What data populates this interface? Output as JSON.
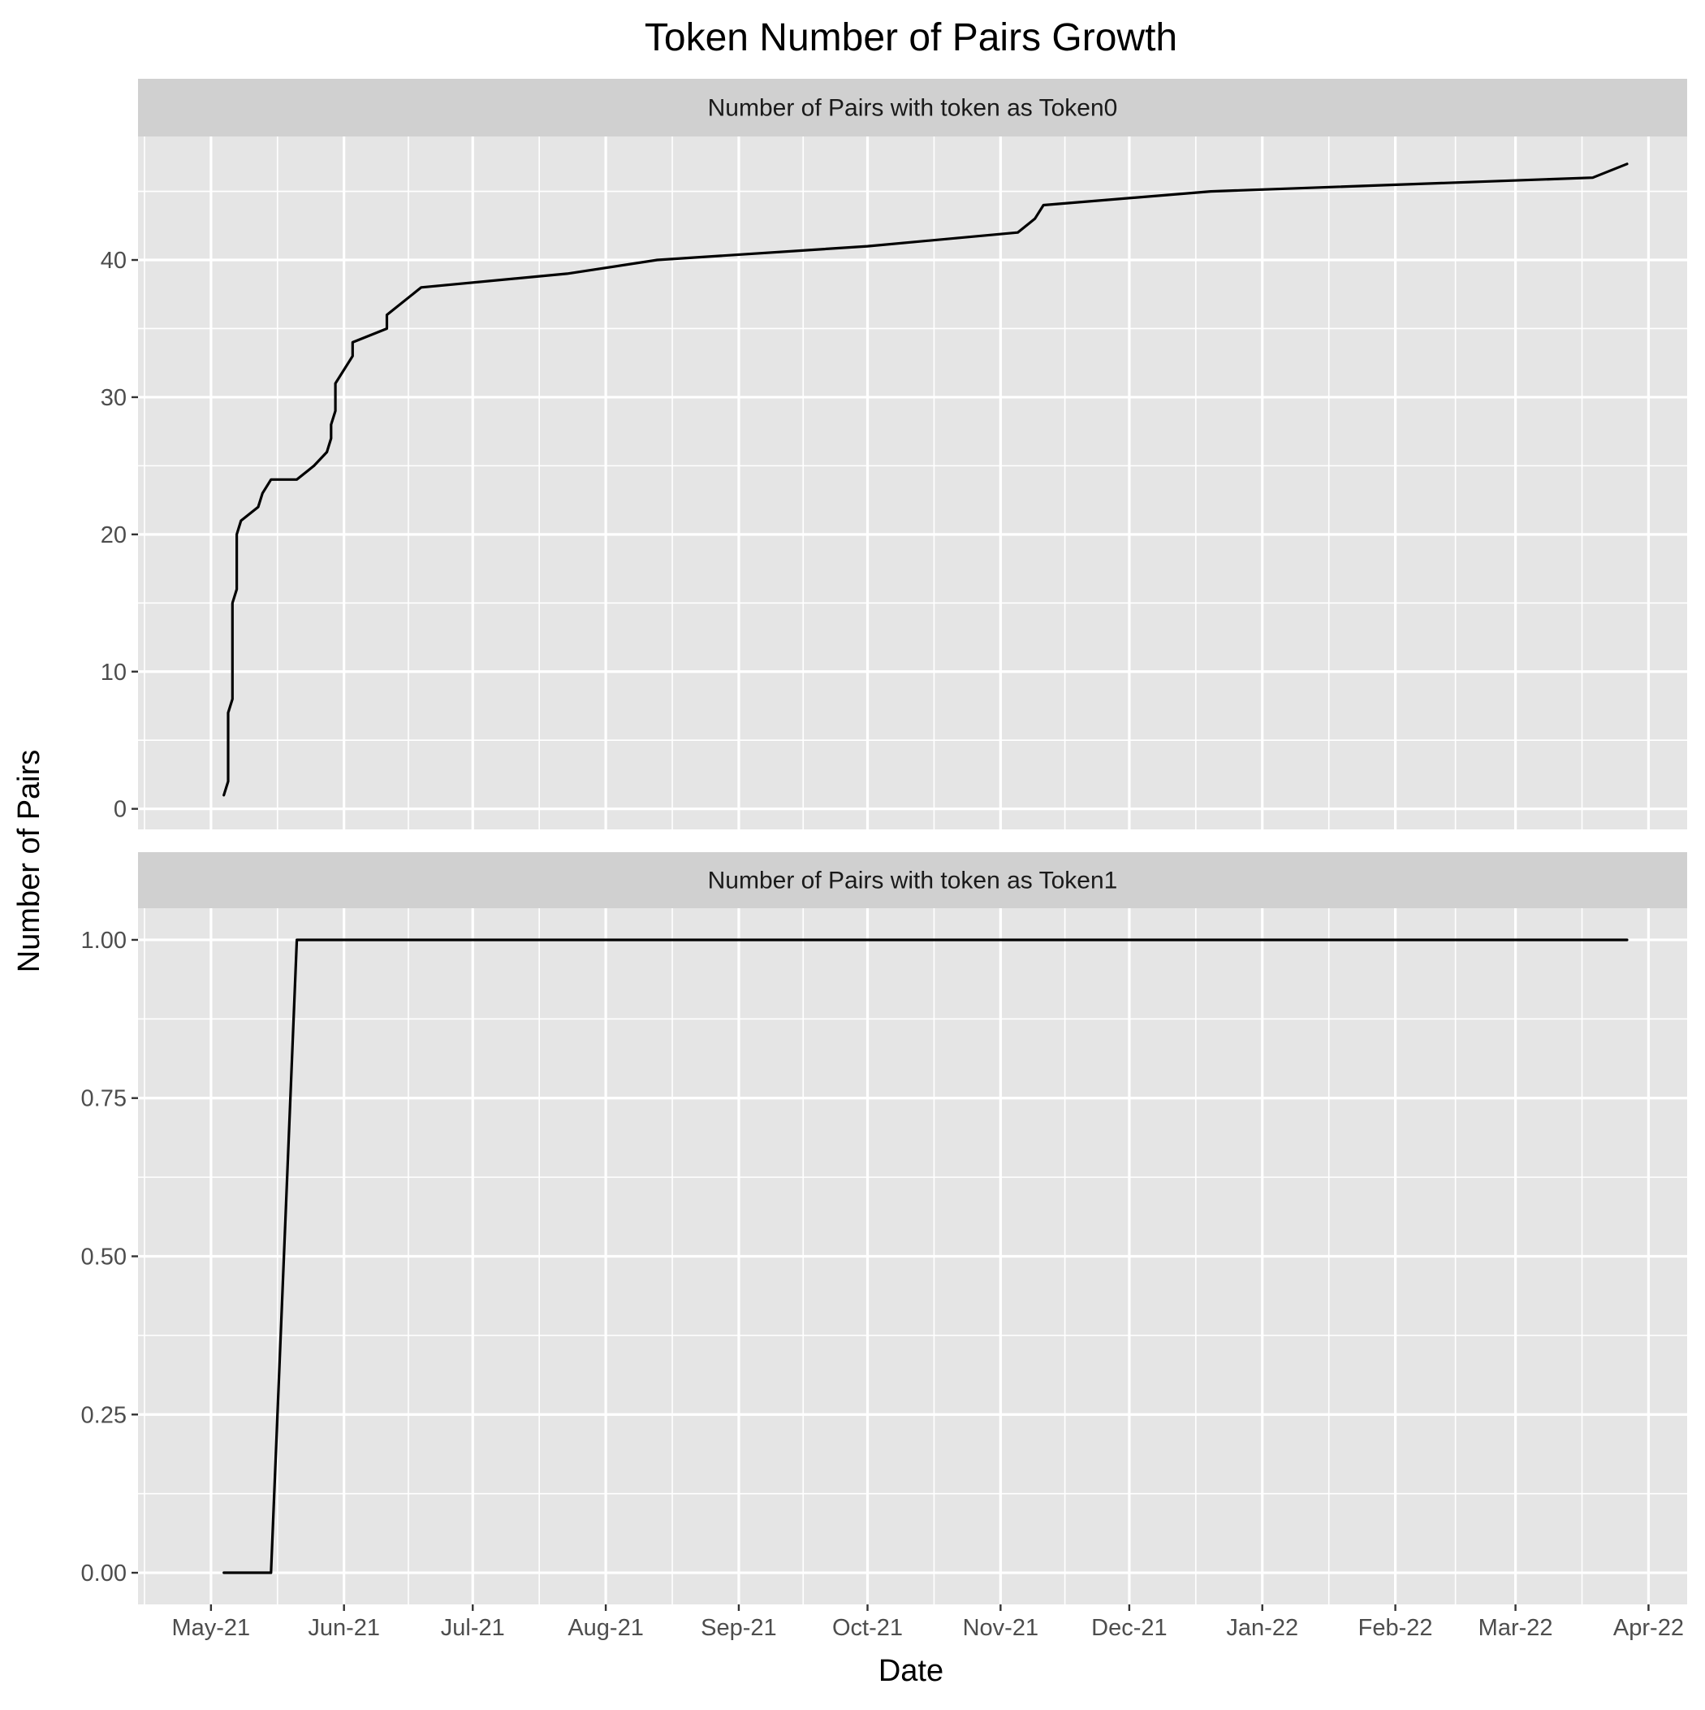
{
  "chart_data": {
    "type": "line",
    "title": "Token Number of Pairs Growth",
    "xlabel": "Date",
    "ylabel": "Number of Pairs",
    "grid": true,
    "legend": "none",
    "x_ticks": [
      "2021-05-01",
      "2021-06-01",
      "2021-07-01",
      "2021-08-01",
      "2021-09-01",
      "2021-10-01",
      "2021-11-01",
      "2021-12-01",
      "2022-01-01",
      "2022-02-01",
      "2022-03-01",
      "2022-04-01"
    ],
    "x_tick_labels": [
      "May-21",
      "Jun-21",
      "Jul-21",
      "Aug-21",
      "Sep-21",
      "Oct-21",
      "Nov-21",
      "Dec-21",
      "Jan-22",
      "Feb-22",
      "Mar-22",
      "Apr-22"
    ],
    "xlim": [
      "2021-04-14",
      "2022-04-10"
    ],
    "panels": [
      {
        "strip": "Number of Pairs with token as Token0",
        "ylim": [
          -1.5,
          49
        ],
        "y_ticks": [
          0,
          10,
          20,
          30,
          40
        ],
        "y_tick_labels": [
          "0",
          "10",
          "20",
          "30",
          "40"
        ],
        "points": [
          [
            "2021-05-04",
            1
          ],
          [
            "2021-05-05",
            2
          ],
          [
            "2021-05-05",
            7
          ],
          [
            "2021-05-06",
            8
          ],
          [
            "2021-05-06",
            15
          ],
          [
            "2021-05-07",
            16
          ],
          [
            "2021-05-07",
            20
          ],
          [
            "2021-05-08",
            21
          ],
          [
            "2021-05-12",
            22
          ],
          [
            "2021-05-13",
            23
          ],
          [
            "2021-05-15",
            24
          ],
          [
            "2021-05-21",
            24
          ],
          [
            "2021-05-25",
            25
          ],
          [
            "2021-05-28",
            26
          ],
          [
            "2021-05-29",
            27
          ],
          [
            "2021-05-29",
            28
          ],
          [
            "2021-05-30",
            29
          ],
          [
            "2021-05-30",
            31
          ],
          [
            "2021-06-03",
            33
          ],
          [
            "2021-06-03",
            34
          ],
          [
            "2021-06-11",
            35
          ],
          [
            "2021-06-11",
            36
          ],
          [
            "2021-06-19",
            38
          ],
          [
            "2021-07-23",
            39
          ],
          [
            "2021-08-13",
            40
          ],
          [
            "2021-10-01",
            41
          ],
          [
            "2021-11-05",
            42
          ],
          [
            "2021-11-09",
            43
          ],
          [
            "2021-11-11",
            44
          ],
          [
            "2021-12-20",
            45
          ],
          [
            "2022-03-19",
            46
          ],
          [
            "2022-03-27",
            47
          ]
        ]
      },
      {
        "strip": "Number of Pairs with token as Token1",
        "ylim": [
          -0.05,
          1.05
        ],
        "y_ticks": [
          0,
          0.25,
          0.5,
          0.75,
          1.0
        ],
        "y_tick_labels": [
          "0.00",
          "0.25",
          "0.50",
          "0.75",
          "1.00"
        ],
        "points": [
          [
            "2021-05-04",
            0
          ],
          [
            "2021-05-15",
            0
          ],
          [
            "2021-05-21",
            1
          ],
          [
            "2022-03-27",
            1
          ]
        ]
      }
    ]
  }
}
